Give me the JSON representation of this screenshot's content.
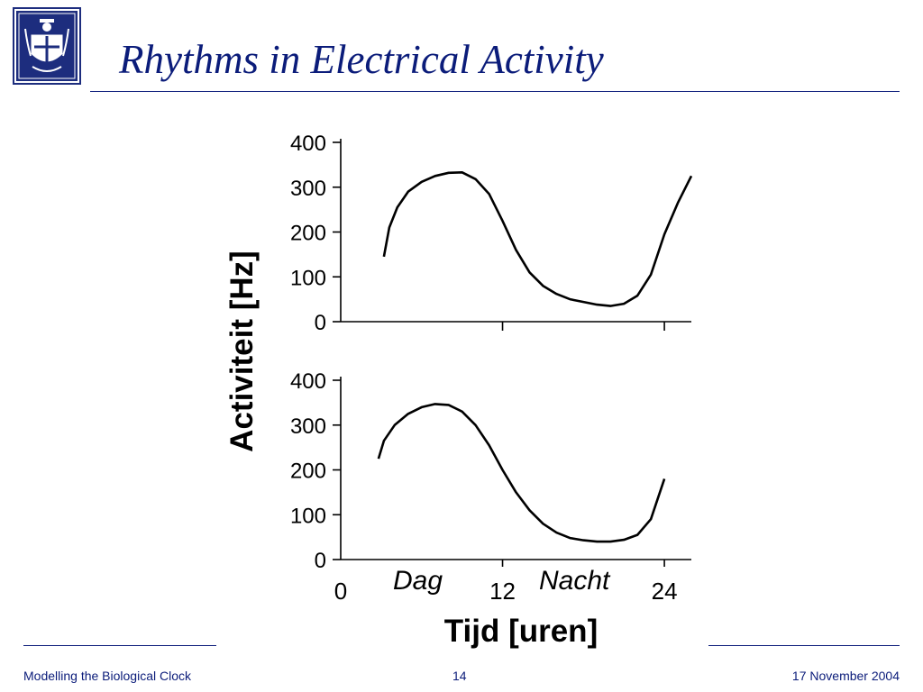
{
  "slide": {
    "title": "Rhythms in Electrical Activity",
    "footer_left": "Modelling the Biological Clock",
    "page_number": "14",
    "date": "17 November 2004"
  },
  "colors": {
    "title": "#0b1c7a",
    "logo_background": "#1d2d7e",
    "plot_line": "#000000"
  },
  "logo": {
    "icon": "university-seal-icon"
  },
  "chart_data": {
    "type": "line",
    "ylabel": "Activiteit [Hz]",
    "xlabel": "Tijd [uren]",
    "annotations": [
      "Dag",
      "Nacht"
    ],
    "x_ticks": [
      0,
      12,
      24
    ],
    "x_tick_labels": [
      "0",
      "12",
      "24"
    ],
    "y_ticks": [
      0,
      100,
      200,
      300,
      400
    ],
    "y_tick_labels": [
      "0",
      "100",
      "200",
      "300",
      "400"
    ],
    "xlim": [
      0,
      26
    ],
    "ylim": [
      0,
      400
    ],
    "grid": false,
    "panels": [
      {
        "x": [
          3.2,
          3.6,
          4.2,
          5,
          6,
          7,
          8,
          9,
          10,
          11,
          12,
          13,
          14,
          15,
          16,
          17,
          18,
          19,
          20,
          21,
          22,
          23,
          24,
          25,
          26
        ],
        "y": [
          145,
          210,
          255,
          290,
          312,
          325,
          332,
          333,
          318,
          285,
          225,
          160,
          110,
          80,
          62,
          50,
          44,
          38,
          35,
          40,
          58,
          105,
          195,
          265,
          325
        ]
      },
      {
        "x": [
          2.8,
          3.2,
          4,
          5,
          6,
          7,
          8,
          9,
          10,
          11,
          12,
          13,
          14,
          15,
          16,
          17,
          18,
          19,
          20,
          21,
          22,
          23,
          24
        ],
        "y": [
          225,
          265,
          300,
          325,
          340,
          347,
          345,
          330,
          300,
          255,
          200,
          150,
          110,
          80,
          60,
          48,
          43,
          40,
          40,
          44,
          55,
          90,
          180
        ]
      }
    ]
  }
}
